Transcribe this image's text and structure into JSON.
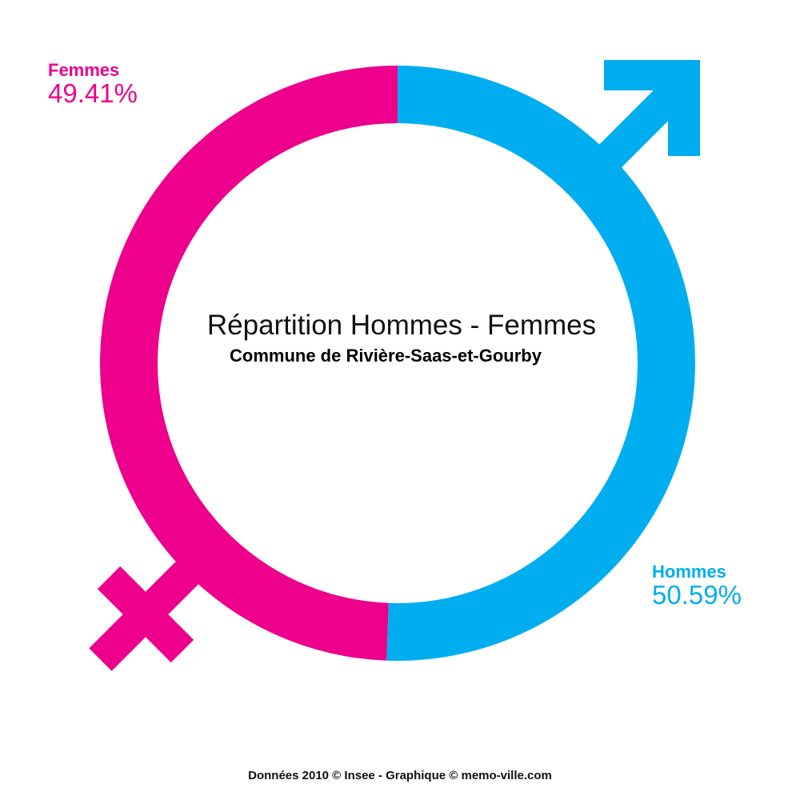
{
  "chart_data": {
    "type": "donut",
    "title": "Répartition Hommes - Femmes",
    "subtitle": "Commune de Rivière-Saas-et-Gourby",
    "source": "Données 2010 © Insee - Graphique © memo-ville.com",
    "categories": [
      "Femmes",
      "Hommes"
    ],
    "values": [
      49.41,
      50.59
    ],
    "value_labels": [
      "49.41%",
      "50.59%"
    ],
    "colors": [
      "#ec008c",
      "#00aeef"
    ]
  }
}
